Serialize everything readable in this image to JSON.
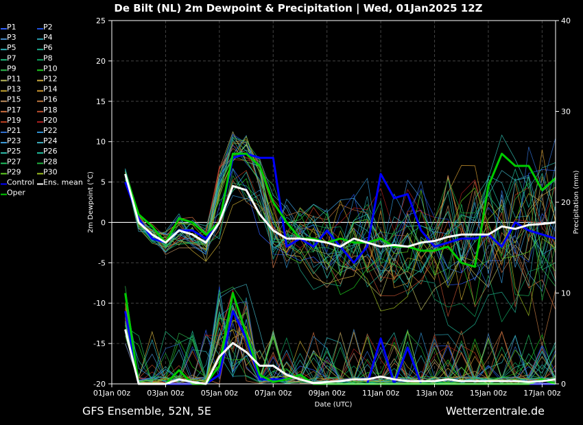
{
  "header": {
    "title": "De Bilt  (NL)  2m Dewpoint & Precipitation | Wed, 01Jan2025 12Z"
  },
  "footer": {
    "left": "GFS Ensemble, 52N, 5E",
    "right": "Wetterzentrale.de"
  },
  "chart_data": {
    "type": "line",
    "title": "De Bilt  (NL)  2m Dewpoint & Precipitation | Wed, 01Jan2025 12Z",
    "xlabel": "Date (UTC)",
    "ylabel": "2m Dewpoint (°C)",
    "y2label": "Precipitation (mm)",
    "x_ticks": [
      "01Jan 00z",
      "03Jan 00z",
      "05Jan 00z",
      "07Jan 00z",
      "09Jan 00z",
      "11Jan 00z",
      "13Jan 00z",
      "15Jan 00z",
      "17Jan 00z"
    ],
    "x_range": [
      "01Jan2025 00z",
      "17Jan2025 12z"
    ],
    "ylim": [
      -20,
      25
    ],
    "y_ticks": [
      -20,
      -15,
      -10,
      -5,
      0,
      5,
      10,
      15,
      20,
      25
    ],
    "y2lim": [
      0,
      40
    ],
    "y2_ticks": [
      0,
      10,
      20,
      30,
      40
    ],
    "grid": true,
    "legend_position": "left",
    "legend": [
      {
        "name": "P1",
        "color": "#3060ff"
      },
      {
        "name": "P2",
        "color": "#2050e0"
      },
      {
        "name": "P3",
        "color": "#4a90d0"
      },
      {
        "name": "P4",
        "color": "#2aa0b0"
      },
      {
        "name": "P5",
        "color": "#30b8c0"
      },
      {
        "name": "P6",
        "color": "#20b090"
      },
      {
        "name": "P7",
        "color": "#20c080"
      },
      {
        "name": "P8",
        "color": "#10a860"
      },
      {
        "name": "P9",
        "color": "#30c050"
      },
      {
        "name": "P10",
        "color": "#20d020"
      },
      {
        "name": "P11",
        "color": "#c0c060"
      },
      {
        "name": "P12",
        "color": "#d0b040"
      },
      {
        "name": "P13",
        "color": "#c8a830"
      },
      {
        "name": "P14",
        "color": "#d09a30"
      },
      {
        "name": "P15",
        "color": "#c09060"
      },
      {
        "name": "P16",
        "color": "#c07840"
      },
      {
        "name": "P17",
        "color": "#d07040"
      },
      {
        "name": "P18",
        "color": "#c05030"
      },
      {
        "name": "P19",
        "color": "#c04020"
      },
      {
        "name": "P20",
        "color": "#b02020"
      },
      {
        "name": "P21",
        "color": "#3070d0"
      },
      {
        "name": "P22",
        "color": "#3090d0"
      },
      {
        "name": "P23",
        "color": "#40a0e0"
      },
      {
        "name": "P24",
        "color": "#40b0c0"
      },
      {
        "name": "P25",
        "color": "#30c0b0"
      },
      {
        "name": "P26",
        "color": "#20c0a0"
      },
      {
        "name": "P27",
        "color": "#20c060"
      },
      {
        "name": "P28",
        "color": "#20b040"
      },
      {
        "name": "P29",
        "color": "#60d020"
      },
      {
        "name": "P30",
        "color": "#a0c020"
      },
      {
        "name": "Control",
        "color": "#0000ff"
      },
      {
        "name": "Ens. mean",
        "color": "#ffffff"
      },
      {
        "name": "Oper",
        "color": "#00cc00"
      }
    ],
    "series": [
      {
        "name": "Ens. mean",
        "axis": "dewpoint",
        "color": "#ffffff",
        "x": [
          "01Jan 12z",
          "02Jan 00z",
          "02Jan 12z",
          "03Jan 00z",
          "03Jan 12z",
          "04Jan 00z",
          "04Jan 12z",
          "05Jan 00z",
          "05Jan 12z",
          "06Jan 00z",
          "06Jan 12z",
          "07Jan 00z",
          "07Jan 12z",
          "08Jan 00z",
          "08Jan 12z",
          "09Jan 00z",
          "09Jan 12z",
          "10Jan 00z",
          "10Jan 12z",
          "11Jan 00z",
          "11Jan 12z",
          "12Jan 00z",
          "12Jan 12z",
          "13Jan 00z",
          "13Jan 12z",
          "14Jan 00z",
          "14Jan 12z",
          "15Jan 00z",
          "15Jan 12z",
          "16Jan 00z",
          "16Jan 12z",
          "17Jan 00z",
          "17Jan 12z"
        ],
        "values": [
          6,
          0,
          -1.5,
          -2.5,
          -1,
          -1.5,
          -2.5,
          0,
          4.5,
          4,
          1,
          -1,
          -2,
          -2,
          -2.2,
          -2.5,
          -3,
          -2,
          -2.5,
          -3,
          -2.8,
          -3,
          -2.5,
          -2.3,
          -1.8,
          -1.5,
          -1.5,
          -1.5,
          -0.5,
          -0.8,
          -0.3,
          -0.2,
          0
        ],
        "y2_values": [
          6,
          0,
          0,
          0,
          0.5,
          0.2,
          0,
          3,
          4.5,
          3.5,
          2,
          2,
          1,
          0.5,
          0.1,
          0.2,
          0.3,
          0.5,
          0.5,
          0.8,
          0.5,
          0.3,
          0.3,
          0.3,
          0.5,
          0.3,
          0.3,
          0.3,
          0.3,
          0.3,
          0.2,
          0.3,
          0.5
        ]
      },
      {
        "name": "Oper",
        "axis": "dewpoint",
        "color": "#00cc00",
        "x": [
          "01Jan 12z",
          "02Jan 00z",
          "02Jan 12z",
          "03Jan 00z",
          "03Jan 12z",
          "04Jan 00z",
          "04Jan 12z",
          "05Jan 00z",
          "05Jan 12z",
          "06Jan 00z",
          "06Jan 12z",
          "07Jan 00z",
          "07Jan 12z",
          "08Jan 00z",
          "08Jan 12z",
          "09Jan 00z",
          "09Jan 12z",
          "10Jan 00z",
          "10Jan 12z",
          "11Jan 00z",
          "11Jan 12z",
          "12Jan 00z",
          "12Jan 12z",
          "13Jan 00z",
          "13Jan 12z",
          "14Jan 00z",
          "14Jan 12z",
          "15Jan 00z",
          "15Jan 12z",
          "16Jan 00z",
          "16Jan 12z",
          "17Jan 00z",
          "17Jan 12z"
        ],
        "values": [
          6,
          1,
          -0.5,
          -2.5,
          0.5,
          0,
          -1.5,
          0,
          8.5,
          8.5,
          7,
          2.5,
          0,
          -2,
          -2,
          -2.5,
          -2,
          -2.5,
          -2.5,
          -2,
          -3,
          -3,
          -3.5,
          -3.5,
          -3,
          -5,
          -5.5,
          4.5,
          8.5,
          7,
          7,
          4,
          5.5
        ],
        "y2_values": [
          10,
          0,
          0,
          0,
          1.5,
          0,
          0,
          2,
          10,
          5.5,
          1,
          0.2,
          0.5,
          1,
          0,
          0,
          0,
          0,
          0,
          0,
          0,
          0,
          0,
          0,
          0,
          0,
          0,
          0,
          0,
          0,
          0,
          0.5,
          0
        ]
      },
      {
        "name": "Control",
        "axis": "dewpoint",
        "color": "#0000ff",
        "x": [
          "01Jan 12z",
          "02Jan 00z",
          "02Jan 12z",
          "03Jan 00z",
          "03Jan 12z",
          "04Jan 00z",
          "04Jan 12z",
          "05Jan 00z",
          "05Jan 12z",
          "06Jan 00z",
          "06Jan 12z",
          "07Jan 00z",
          "07Jan 12z",
          "08Jan 00z",
          "08Jan 12z",
          "09Jan 00z",
          "09Jan 12z",
          "10Jan 00z",
          "10Jan 12z",
          "11Jan 00z",
          "11Jan 12z",
          "12Jan 00z",
          "12Jan 12z",
          "13Jan 00z",
          "13Jan 12z",
          "14Jan 00z",
          "14Jan 12z",
          "15Jan 00z",
          "15Jan 12z",
          "16Jan 00z",
          "16Jan 12z",
          "17Jan 00z",
          "17Jan 12z"
        ],
        "values": [
          5,
          0.5,
          -2,
          -2.5,
          -1,
          -1,
          -2,
          0,
          8,
          8.5,
          8,
          8,
          -3,
          -2,
          -3,
          -1,
          -3,
          -5,
          -3,
          6,
          3,
          3.5,
          -1,
          -3,
          -2.5,
          -2,
          -2,
          -1.5,
          -3,
          0,
          -1,
          -1.5,
          -2
        ],
        "y2_values": [
          8,
          0,
          0,
          0,
          0,
          0,
          0,
          1,
          8,
          5,
          0.5,
          0.5,
          0.5,
          1,
          0,
          0,
          0,
          0,
          0,
          5,
          0,
          4,
          0,
          0,
          0,
          0,
          0,
          0,
          0,
          0,
          0,
          0,
          0
        ]
      }
    ]
  }
}
